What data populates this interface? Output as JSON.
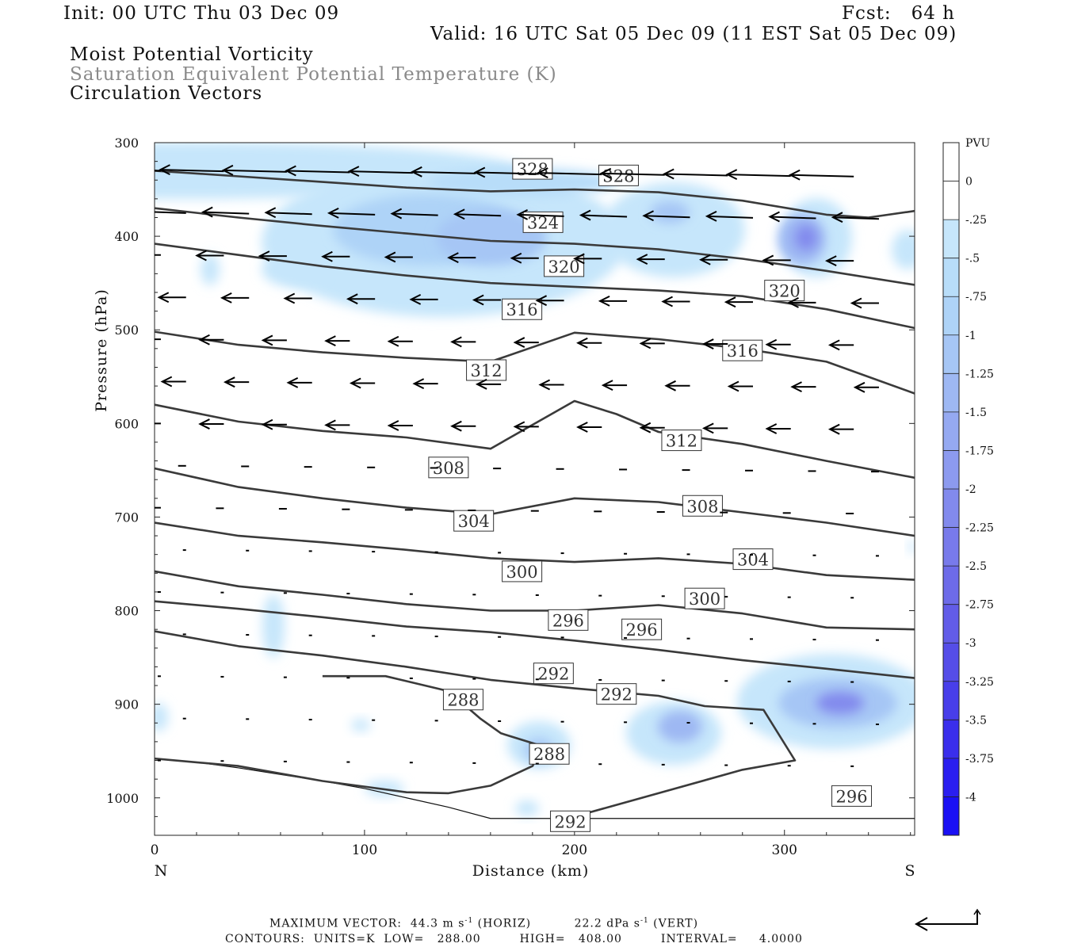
{
  "header": {
    "init": "Init: 00 UTC Thu 03 Dec 09",
    "fcst": "Fcst:   64 h",
    "valid": "Valid: 16 UTC Sat 05 Dec 09 (11 EST Sat 05 Dec 09)",
    "field1": "Moist Potential Vorticity",
    "field2": "Saturation Equivalent Potential Temperature (K)",
    "field3": "Circulation Vectors"
  },
  "footer": {
    "line1a": "MAXIMUM VECTOR:  44.3 m s",
    "line1b": "-1",
    "line1c": " (HORIZ)",
    "line1d": "22.2 dPa s",
    "line1e": "-1",
    "line1f": " (VERT)",
    "line2": "CONTOURS:  UNITS=K  LOW=   288.00         HIGH=   408.00         INTERVAL=     4.0000"
  },
  "chart_data": {
    "type": "cross-section",
    "xlabel": "Distance (km)",
    "ylabel": "Pressure (hPa)",
    "x_end_labels": [
      "N",
      "S"
    ],
    "xlim": [
      0,
      362
    ],
    "ylim": [
      1040,
      300
    ],
    "x_ticks": [
      0,
      100,
      200,
      300
    ],
    "y_ticks": [
      300,
      400,
      500,
      600,
      700,
      800,
      900,
      1000
    ],
    "colorbar": {
      "title": "PVU",
      "levels": [
        "0",
        "-.25",
        "-.5",
        "-.75",
        "-1",
        "-1.25",
        "-1.5",
        "-1.75",
        "-2",
        "-2.25",
        "-2.5",
        "-2.75",
        "-3",
        "-3.25",
        "-3.5",
        "-3.75",
        "-4"
      ],
      "colors": [
        "#ffffff",
        "#ffffff",
        "#c6e6fb",
        "#b8ddf9",
        "#aed3f7",
        "#a6c6f5",
        "#9eb8f3",
        "#95a9f1",
        "#8c9aef",
        "#828aed",
        "#787aeb",
        "#6d6be9",
        "#625ce8",
        "#554de8",
        "#483eea",
        "#3a2eec",
        "#2a1ef0",
        "#1a10f4"
      ]
    },
    "contours": [
      {
        "label": "328",
        "labels_at": [
          [
            180,
            328
          ],
          [
            221,
            335
          ]
        ],
        "points": [
          [
            0,
            330
          ],
          [
            40,
            336
          ],
          [
            80,
            342
          ],
          [
            120,
            348
          ],
          [
            160,
            352
          ],
          [
            200,
            350
          ],
          [
            240,
            353
          ],
          [
            280,
            362
          ],
          [
            320,
            377
          ],
          [
            340,
            380
          ],
          [
            362,
            373
          ]
        ]
      },
      {
        "label": "324",
        "labels_at": [
          [
            185,
            385
          ]
        ],
        "points": [
          [
            0,
            370
          ],
          [
            40,
            380
          ],
          [
            80,
            389
          ],
          [
            120,
            397
          ],
          [
            160,
            405
          ],
          [
            200,
            408
          ],
          [
            240,
            414
          ],
          [
            280,
            424
          ],
          [
            320,
            437
          ],
          [
            362,
            452
          ]
        ]
      },
      {
        "label": "320",
        "labels_at": [
          [
            195,
            432
          ],
          [
            300,
            458
          ]
        ],
        "points": [
          [
            0,
            408
          ],
          [
            40,
            420
          ],
          [
            80,
            432
          ],
          [
            120,
            442
          ],
          [
            160,
            450
          ],
          [
            200,
            454
          ],
          [
            240,
            458
          ],
          [
            280,
            464
          ],
          [
            320,
            478
          ],
          [
            362,
            498
          ]
        ]
      },
      {
        "label": "316",
        "labels_at": [
          [
            175,
            478
          ],
          [
            280,
            522
          ]
        ],
        "points": [
          [
            0,
            502
          ],
          [
            40,
            516
          ],
          [
            80,
            524
          ],
          [
            120,
            530
          ],
          [
            160,
            534
          ],
          [
            200,
            503
          ],
          [
            240,
            510
          ],
          [
            280,
            520
          ],
          [
            320,
            534
          ],
          [
            362,
            568
          ]
        ]
      },
      {
        "label": "312",
        "labels_at": [
          [
            158,
            543
          ],
          [
            251,
            618
          ]
        ],
        "points": [
          [
            0,
            580
          ],
          [
            40,
            598
          ],
          [
            80,
            608
          ],
          [
            120,
            615
          ],
          [
            160,
            627
          ],
          [
            200,
            576
          ],
          [
            220,
            590
          ],
          [
            240,
            609
          ],
          [
            280,
            622
          ],
          [
            320,
            640
          ],
          [
            362,
            658
          ]
        ]
      },
      {
        "label": "308",
        "labels_at": [
          [
            140,
            647
          ],
          [
            261,
            688
          ]
        ],
        "points": [
          [
            0,
            648
          ],
          [
            40,
            668
          ],
          [
            80,
            680
          ],
          [
            120,
            690
          ],
          [
            160,
            697
          ],
          [
            200,
            680
          ],
          [
            240,
            684
          ],
          [
            280,
            695
          ],
          [
            320,
            706
          ],
          [
            362,
            720
          ]
        ]
      },
      {
        "label": "304",
        "labels_at": [
          [
            152,
            704
          ],
          [
            285,
            745
          ]
        ],
        "points": [
          [
            0,
            706
          ],
          [
            40,
            720
          ],
          [
            80,
            727
          ],
          [
            120,
            735
          ],
          [
            160,
            744
          ],
          [
            200,
            748
          ],
          [
            240,
            744
          ],
          [
            280,
            750
          ],
          [
            320,
            762
          ],
          [
            362,
            767
          ]
        ]
      },
      {
        "label": "300",
        "labels_at": [
          [
            175,
            758
          ],
          [
            262,
            787
          ]
        ],
        "points": [
          [
            0,
            758
          ],
          [
            40,
            774
          ],
          [
            80,
            783
          ],
          [
            120,
            793
          ],
          [
            160,
            800
          ],
          [
            200,
            800
          ],
          [
            240,
            794
          ],
          [
            280,
            803
          ],
          [
            320,
            818
          ],
          [
            362,
            820
          ]
        ]
      },
      {
        "label": "296",
        "labels_at": [
          [
            197,
            810
          ],
          [
            232,
            820
          ],
          [
            332,
            998
          ]
        ],
        "points": [
          [
            0,
            790
          ],
          [
            40,
            798
          ],
          [
            80,
            807
          ],
          [
            120,
            817
          ],
          [
            160,
            823
          ],
          [
            200,
            832
          ],
          [
            240,
            842
          ],
          [
            280,
            853
          ],
          [
            320,
            862
          ],
          [
            362,
            872
          ]
        ]
      },
      {
        "label": "292",
        "labels_at": [
          [
            190,
            867
          ],
          [
            220,
            889
          ],
          [
            198,
            1025
          ]
        ],
        "points": [
          [
            0,
            822
          ],
          [
            40,
            838
          ],
          [
            80,
            848
          ],
          [
            120,
            860
          ],
          [
            160,
            874
          ],
          [
            200,
            883
          ],
          [
            240,
            891
          ],
          [
            262,
            902
          ],
          [
            290,
            906
          ],
          [
            305,
            960
          ],
          [
            280,
            970
          ],
          [
            240,
            995
          ],
          [
            200,
            1020
          ]
        ]
      },
      {
        "label": "288",
        "labels_at": [
          [
            147,
            895
          ],
          [
            188,
            953
          ]
        ],
        "points": [
          [
            0,
            958
          ],
          [
            40,
            966
          ],
          [
            80,
            982
          ],
          [
            120,
            994
          ],
          [
            140,
            995
          ],
          [
            160,
            987
          ],
          [
            180,
            966
          ],
          [
            185,
            945
          ],
          [
            165,
            931
          ],
          [
            155,
            915
          ],
          [
            140,
            886
          ],
          [
            110,
            870
          ],
          [
            80,
            870
          ]
        ]
      }
    ],
    "pv_anomalies": [
      {
        "x": 260,
        "y": 925,
        "peak_pvu": -2.0
      },
      {
        "x": 325,
        "y": 900,
        "peak_pvu": -2.25
      },
      {
        "x": 308,
        "y": 405,
        "peak_pvu": -2.5
      },
      {
        "x": 160,
        "y": 390,
        "peak_pvu": -1.25
      },
      {
        "x": 245,
        "y": 375,
        "peak_pvu": -1.5
      },
      {
        "x": 185,
        "y": 955,
        "peak_pvu": -1.0
      }
    ]
  }
}
